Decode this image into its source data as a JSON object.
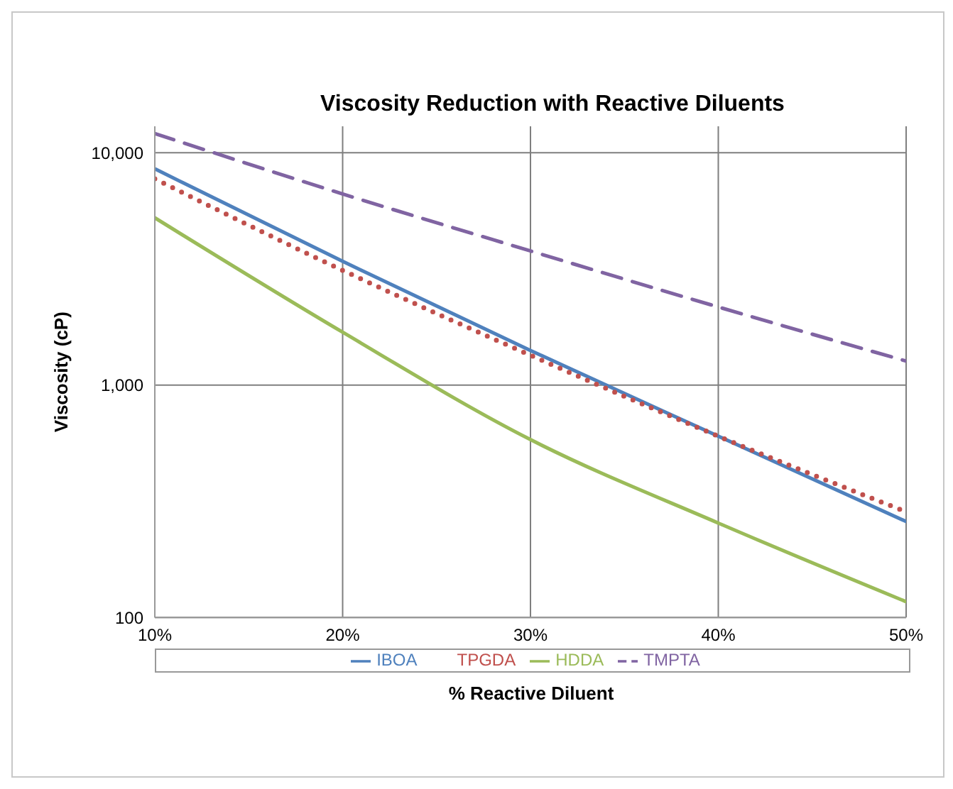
{
  "chart_data": {
    "type": "line",
    "title": "Viscosity Reduction with Reactive Diluents",
    "xlabel": "% Reactive Diluent",
    "ylabel": "Viscosity (cP)",
    "x": [
      10,
      20,
      30,
      40,
      50
    ],
    "series": [
      {
        "name": "IBOA",
        "color": "#4f81bd",
        "line_style": "solid",
        "values": [
          8530,
          3410,
          1410,
          603,
          259
        ]
      },
      {
        "name": "TPGDA",
        "color": "#c0504d",
        "line_style": "dotted",
        "values": [
          7720,
          3120,
          1345,
          603,
          285
        ]
      },
      {
        "name": "HDDA",
        "color": "#9bbb59",
        "line_style": "solid",
        "values": [
          5250,
          1690,
          583,
          255,
          117
        ]
      },
      {
        "name": "TMPTA",
        "color": "#8064a2",
        "line_style": "dashed",
        "values": [
          12100,
          6650,
          3780,
          2170,
          1270
        ]
      }
    ],
    "xlim": [
      10,
      50
    ],
    "xticks": [
      {
        "value": 10,
        "label": "10%"
      },
      {
        "value": 20,
        "label": "20%"
      },
      {
        "value": 30,
        "label": "30%"
      },
      {
        "value": 40,
        "label": "40%"
      },
      {
        "value": 50,
        "label": "50%"
      }
    ],
    "ylim": [
      100,
      13000
    ],
    "yticks": [
      {
        "value": 100,
        "label": "100"
      },
      {
        "value": 1000,
        "label": "1,000"
      },
      {
        "value": 10000,
        "label": "10,000"
      }
    ],
    "log": "y",
    "grid": true,
    "legend": "bottom",
    "marker": "none"
  }
}
